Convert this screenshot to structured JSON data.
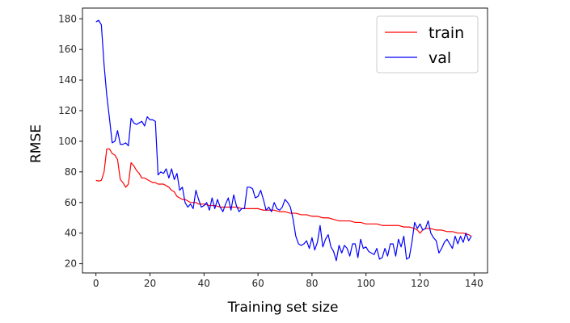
{
  "chart_data": {
    "type": "line",
    "title": "",
    "xlabel": "Training set size",
    "ylabel": "RMSE",
    "xlim": [
      -5,
      145
    ],
    "ylim": [
      14,
      187
    ],
    "xticks": [
      0,
      20,
      40,
      60,
      80,
      100,
      120,
      140
    ],
    "yticks": [
      20,
      40,
      60,
      80,
      100,
      120,
      140,
      160,
      180
    ],
    "grid": false,
    "legend_position": "top-right",
    "series": [
      {
        "name": "train",
        "color": "#ff0000",
        "x": [
          0,
          1,
          2,
          3,
          4,
          5,
          6,
          7,
          8,
          9,
          10,
          11,
          12,
          13,
          14,
          15,
          16,
          17,
          18,
          19,
          20,
          21,
          22,
          23,
          24,
          25,
          26,
          27,
          28,
          29,
          30,
          31,
          32,
          33,
          34,
          35,
          36,
          37,
          38,
          39,
          40,
          42,
          44,
          46,
          48,
          50,
          52,
          54,
          56,
          58,
          60,
          62,
          64,
          66,
          68,
          70,
          72,
          74,
          76,
          78,
          80,
          82,
          84,
          86,
          88,
          90,
          92,
          94,
          96,
          98,
          100,
          102,
          104,
          106,
          108,
          110,
          112,
          114,
          116,
          118,
          119,
          120,
          121,
          122,
          124,
          126,
          128,
          130,
          132,
          134,
          136,
          138,
          139
        ],
        "values": [
          74.5,
          74,
          74.5,
          80,
          95,
          95,
          92,
          91,
          88,
          75,
          73,
          70,
          72,
          86,
          84,
          81,
          79,
          76,
          76,
          75,
          74,
          73,
          73,
          72,
          72,
          72,
          71,
          70,
          68,
          67,
          64,
          63,
          62,
          62,
          61,
          60,
          60,
          60,
          59,
          59,
          59,
          58,
          58,
          57,
          57,
          57,
          57,
          56,
          56,
          56,
          56,
          55,
          55,
          55,
          54,
          54,
          53,
          53,
          52,
          52,
          51,
          51,
          50,
          50,
          49,
          48,
          48,
          48,
          47,
          47,
          46,
          46,
          46,
          45,
          45,
          45,
          45,
          44,
          44,
          43,
          42,
          40,
          42,
          43,
          43,
          42,
          42,
          41,
          41,
          40,
          40,
          39,
          38
        ]
      },
      {
        "name": "val",
        "color": "#0000ff",
        "x": [
          0,
          1,
          2,
          3,
          4,
          5,
          6,
          7,
          8,
          9,
          10,
          11,
          12,
          13,
          14,
          15,
          16,
          17,
          18,
          19,
          20,
          21,
          22,
          23,
          24,
          25,
          26,
          27,
          28,
          29,
          30,
          31,
          32,
          33,
          34,
          35,
          36,
          37,
          38,
          39,
          40,
          41,
          42,
          43,
          44,
          45,
          46,
          47,
          48,
          49,
          50,
          51,
          52,
          53,
          54,
          55,
          56,
          57,
          58,
          59,
          60,
          61,
          62,
          63,
          64,
          65,
          66,
          67,
          68,
          69,
          70,
          71,
          72,
          73,
          74,
          75,
          76,
          77,
          78,
          79,
          80,
          81,
          82,
          83,
          84,
          85,
          86,
          87,
          88,
          89,
          90,
          91,
          92,
          93,
          94,
          95,
          96,
          97,
          98,
          99,
          100,
          101,
          102,
          103,
          104,
          105,
          106,
          107,
          108,
          109,
          110,
          111,
          112,
          113,
          114,
          115,
          116,
          117,
          118,
          119,
          120,
          121,
          122,
          123,
          124,
          125,
          126,
          127,
          128,
          129,
          130,
          131,
          132,
          133,
          134,
          135,
          136,
          137,
          138,
          139
        ],
        "values": [
          178,
          179,
          176,
          150,
          130,
          115,
          99,
          100,
          107,
          98,
          98,
          99,
          97,
          115,
          112,
          111,
          112,
          113,
          110,
          116,
          114,
          114,
          113,
          78,
          80,
          79,
          82,
          76,
          82,
          75,
          79,
          68,
          70,
          60,
          57,
          59,
          56,
          68,
          62,
          57,
          58,
          60,
          55,
          63,
          56,
          62,
          57,
          54,
          59,
          63,
          55,
          65,
          58,
          54,
          56,
          56,
          70,
          70,
          69,
          63,
          64,
          68,
          62,
          55,
          57,
          54,
          60,
          56,
          55,
          57,
          62,
          60,
          57,
          49,
          38,
          33,
          32,
          33,
          35,
          30,
          37,
          29,
          34,
          45,
          31,
          36,
          39,
          31,
          28,
          22,
          32,
          27,
          32,
          30,
          25,
          33,
          33,
          24,
          36,
          30,
          31,
          28,
          27,
          26,
          30,
          23,
          24,
          30,
          25,
          33,
          33,
          25,
          36,
          31,
          38,
          23,
          24,
          34,
          47,
          43,
          46,
          42,
          43,
          48,
          40,
          37,
          35,
          27,
          30,
          34,
          36,
          33,
          30,
          38,
          33,
          38,
          34,
          40,
          35,
          38
        ],
        "values_note": ""
      }
    ]
  }
}
